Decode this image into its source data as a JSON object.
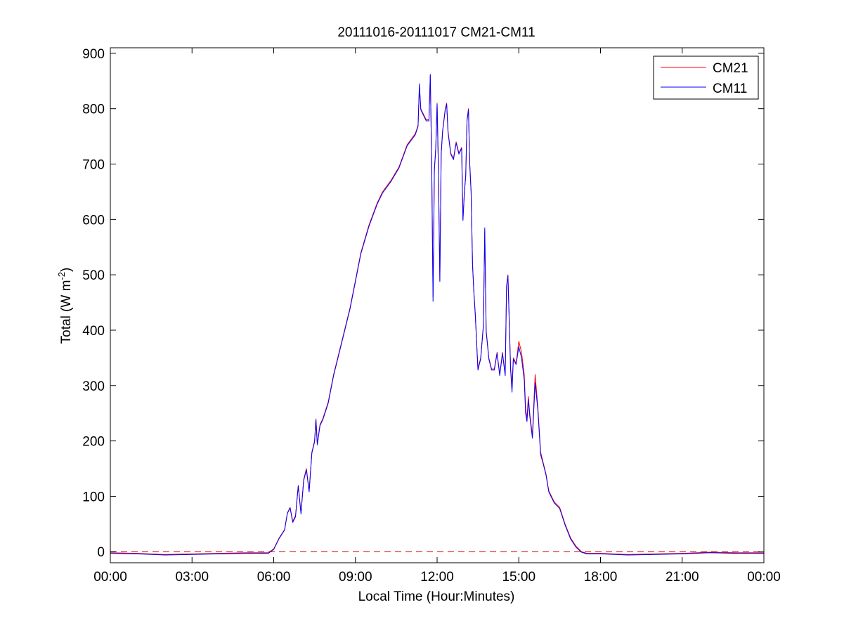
{
  "chart_data": {
    "type": "line",
    "title": "20111016-20111017 CM21-CM11",
    "xlabel": "Local Time (Hour:Minutes)",
    "ylabel": {
      "main": "Total (W m",
      "sup": "-2",
      "close": ")"
    },
    "x_unit": "hours",
    "xlim": [
      0,
      24
    ],
    "ylim": [
      -20,
      910
    ],
    "x_ticks": [
      {
        "value": 0,
        "label": "00:00"
      },
      {
        "value": 3,
        "label": "03:00"
      },
      {
        "value": 6,
        "label": "06:00"
      },
      {
        "value": 9,
        "label": "09:00"
      },
      {
        "value": 12,
        "label": "12:00"
      },
      {
        "value": 15,
        "label": "15:00"
      },
      {
        "value": 18,
        "label": "18:00"
      },
      {
        "value": 21,
        "label": "21:00"
      },
      {
        "value": 24,
        "label": "00:00"
      }
    ],
    "y_ticks": [
      0,
      100,
      200,
      300,
      400,
      500,
      600,
      700,
      800,
      900
    ],
    "grid": false,
    "legend": "top-right",
    "reference_line": {
      "y": 0,
      "color": "#c00000",
      "style": "dashed"
    },
    "series": [
      {
        "name": "CM21",
        "color": "#ff0000",
        "points": [
          [
            0,
            -2
          ],
          [
            1,
            -3
          ],
          [
            2,
            -5
          ],
          [
            3,
            -4
          ],
          [
            4,
            -3
          ],
          [
            5,
            -2
          ],
          [
            5.8,
            -2
          ],
          [
            6.0,
            5
          ],
          [
            6.2,
            25
          ],
          [
            6.4,
            40
          ],
          [
            6.5,
            70
          ],
          [
            6.6,
            80
          ],
          [
            6.7,
            55
          ],
          [
            6.8,
            65
          ],
          [
            6.9,
            120
          ],
          [
            7.0,
            70
          ],
          [
            7.1,
            130
          ],
          [
            7.2,
            150
          ],
          [
            7.3,
            110
          ],
          [
            7.4,
            180
          ],
          [
            7.5,
            200
          ],
          [
            7.55,
            240
          ],
          [
            7.6,
            195
          ],
          [
            7.7,
            230
          ],
          [
            7.8,
            240
          ],
          [
            8.0,
            270
          ],
          [
            8.2,
            320
          ],
          [
            8.5,
            380
          ],
          [
            8.8,
            440
          ],
          [
            9.0,
            490
          ],
          [
            9.2,
            540
          ],
          [
            9.5,
            590
          ],
          [
            9.8,
            630
          ],
          [
            10.0,
            650
          ],
          [
            10.3,
            670
          ],
          [
            10.6,
            695
          ],
          [
            10.9,
            735
          ],
          [
            11.2,
            755
          ],
          [
            11.3,
            770
          ],
          [
            11.35,
            840
          ],
          [
            11.4,
            800
          ],
          [
            11.5,
            790
          ],
          [
            11.6,
            780
          ],
          [
            11.7,
            780
          ],
          [
            11.75,
            860
          ],
          [
            11.8,
            700
          ],
          [
            11.85,
            460
          ],
          [
            11.9,
            690
          ],
          [
            11.95,
            730
          ],
          [
            12.0,
            810
          ],
          [
            12.05,
            690
          ],
          [
            12.1,
            490
          ],
          [
            12.15,
            720
          ],
          [
            12.2,
            760
          ],
          [
            12.25,
            780
          ],
          [
            12.3,
            800
          ],
          [
            12.35,
            810
          ],
          [
            12.4,
            760
          ],
          [
            12.5,
            720
          ],
          [
            12.6,
            710
          ],
          [
            12.7,
            740
          ],
          [
            12.8,
            720
          ],
          [
            12.9,
            730
          ],
          [
            12.95,
            600
          ],
          [
            13.0,
            650
          ],
          [
            13.05,
            680
          ],
          [
            13.1,
            780
          ],
          [
            13.15,
            800
          ],
          [
            13.2,
            700
          ],
          [
            13.25,
            650
          ],
          [
            13.3,
            520
          ],
          [
            13.35,
            470
          ],
          [
            13.4,
            430
          ],
          [
            13.5,
            330
          ],
          [
            13.6,
            350
          ],
          [
            13.7,
            410
          ],
          [
            13.75,
            580
          ],
          [
            13.8,
            400
          ],
          [
            13.9,
            350
          ],
          [
            14.0,
            330
          ],
          [
            14.1,
            330
          ],
          [
            14.2,
            360
          ],
          [
            14.3,
            320
          ],
          [
            14.4,
            360
          ],
          [
            14.5,
            320
          ],
          [
            14.55,
            480
          ],
          [
            14.6,
            500
          ],
          [
            14.7,
            330
          ],
          [
            14.75,
            300
          ],
          [
            14.8,
            350
          ],
          [
            14.9,
            340
          ],
          [
            15.0,
            380
          ],
          [
            15.1,
            360
          ],
          [
            15.2,
            320
          ],
          [
            15.25,
            260
          ],
          [
            15.3,
            240
          ],
          [
            15.35,
            280
          ],
          [
            15.4,
            250
          ],
          [
            15.5,
            210
          ],
          [
            15.6,
            320
          ],
          [
            15.7,
            260
          ],
          [
            15.8,
            180
          ],
          [
            15.9,
            160
          ],
          [
            16.0,
            140
          ],
          [
            16.1,
            110
          ],
          [
            16.3,
            90
          ],
          [
            16.5,
            80
          ],
          [
            16.7,
            50
          ],
          [
            16.9,
            25
          ],
          [
            17.1,
            10
          ],
          [
            17.3,
            0
          ],
          [
            17.5,
            -3
          ],
          [
            18,
            -3
          ],
          [
            19,
            -5
          ],
          [
            20,
            -4
          ],
          [
            21,
            -3
          ],
          [
            22,
            -1
          ],
          [
            23,
            -2
          ],
          [
            24,
            -2
          ]
        ]
      },
      {
        "name": "CM11",
        "color": "#0000ff",
        "points": [
          [
            0,
            -3
          ],
          [
            1,
            -4
          ],
          [
            2,
            -6
          ],
          [
            3,
            -5
          ],
          [
            4,
            -4
          ],
          [
            5,
            -3
          ],
          [
            5.8,
            -3
          ],
          [
            6.0,
            4
          ],
          [
            6.2,
            24
          ],
          [
            6.4,
            39
          ],
          [
            6.5,
            69
          ],
          [
            6.6,
            79
          ],
          [
            6.7,
            53
          ],
          [
            6.8,
            63
          ],
          [
            6.9,
            118
          ],
          [
            7.0,
            68
          ],
          [
            7.1,
            128
          ],
          [
            7.2,
            148
          ],
          [
            7.3,
            108
          ],
          [
            7.4,
            178
          ],
          [
            7.5,
            198
          ],
          [
            7.55,
            238
          ],
          [
            7.6,
            193
          ],
          [
            7.7,
            228
          ],
          [
            7.8,
            238
          ],
          [
            8.0,
            268
          ],
          [
            8.2,
            318
          ],
          [
            8.5,
            378
          ],
          [
            8.8,
            438
          ],
          [
            9.0,
            488
          ],
          [
            9.2,
            538
          ],
          [
            9.5,
            588
          ],
          [
            9.8,
            628
          ],
          [
            10.0,
            648
          ],
          [
            10.3,
            668
          ],
          [
            10.6,
            693
          ],
          [
            10.9,
            733
          ],
          [
            11.2,
            753
          ],
          [
            11.3,
            768
          ],
          [
            11.35,
            845
          ],
          [
            11.4,
            798
          ],
          [
            11.5,
            788
          ],
          [
            11.6,
            778
          ],
          [
            11.7,
            778
          ],
          [
            11.75,
            862
          ],
          [
            11.8,
            698
          ],
          [
            11.85,
            452
          ],
          [
            11.9,
            688
          ],
          [
            11.95,
            728
          ],
          [
            12.0,
            808
          ],
          [
            12.05,
            688
          ],
          [
            12.1,
            488
          ],
          [
            12.15,
            718
          ],
          [
            12.2,
            758
          ],
          [
            12.25,
            778
          ],
          [
            12.3,
            798
          ],
          [
            12.35,
            808
          ],
          [
            12.4,
            758
          ],
          [
            12.5,
            718
          ],
          [
            12.6,
            708
          ],
          [
            12.7,
            738
          ],
          [
            12.8,
            718
          ],
          [
            12.9,
            728
          ],
          [
            12.95,
            598
          ],
          [
            13.0,
            648
          ],
          [
            13.05,
            678
          ],
          [
            13.1,
            778
          ],
          [
            13.15,
            798
          ],
          [
            13.2,
            698
          ],
          [
            13.25,
            648
          ],
          [
            13.3,
            518
          ],
          [
            13.35,
            468
          ],
          [
            13.4,
            428
          ],
          [
            13.5,
            328
          ],
          [
            13.6,
            348
          ],
          [
            13.7,
            408
          ],
          [
            13.75,
            585
          ],
          [
            13.8,
            398
          ],
          [
            13.9,
            348
          ],
          [
            14.0,
            328
          ],
          [
            14.1,
            328
          ],
          [
            14.2,
            358
          ],
          [
            14.3,
            318
          ],
          [
            14.4,
            358
          ],
          [
            14.5,
            318
          ],
          [
            14.55,
            478
          ],
          [
            14.6,
            498
          ],
          [
            14.7,
            328
          ],
          [
            14.75,
            288
          ],
          [
            14.8,
            348
          ],
          [
            14.9,
            338
          ],
          [
            15.0,
            370
          ],
          [
            15.1,
            350
          ],
          [
            15.2,
            310
          ],
          [
            15.25,
            250
          ],
          [
            15.3,
            235
          ],
          [
            15.35,
            275
          ],
          [
            15.4,
            245
          ],
          [
            15.5,
            205
          ],
          [
            15.6,
            305
          ],
          [
            15.7,
            255
          ],
          [
            15.8,
            175
          ],
          [
            15.9,
            158
          ],
          [
            16.0,
            138
          ],
          [
            16.1,
            108
          ],
          [
            16.3,
            88
          ],
          [
            16.5,
            78
          ],
          [
            16.7,
            48
          ],
          [
            16.9,
            23
          ],
          [
            17.1,
            8
          ],
          [
            17.3,
            -1
          ],
          [
            17.5,
            -4
          ],
          [
            18,
            -4
          ],
          [
            19,
            -6
          ],
          [
            20,
            -5
          ],
          [
            21,
            -4
          ],
          [
            22,
            -2
          ],
          [
            23,
            -3
          ],
          [
            24,
            -3
          ]
        ]
      }
    ]
  }
}
